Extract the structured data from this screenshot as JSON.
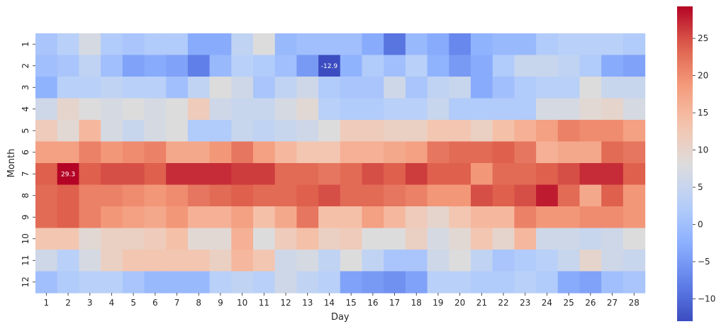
{
  "chart_data": {
    "type": "heatmap",
    "title": "",
    "xlabel": "Day",
    "ylabel": "Month",
    "x_categories": [
      "1",
      "2",
      "3",
      "4",
      "5",
      "6",
      "7",
      "8",
      "9",
      "10",
      "11",
      "12",
      "13",
      "14",
      "15",
      "16",
      "17",
      "18",
      "19",
      "20",
      "21",
      "22",
      "23",
      "24",
      "25",
      "26",
      "27",
      "28"
    ],
    "y_categories": [
      "1",
      "2",
      "3",
      "4",
      "5",
      "6",
      "7",
      "8",
      "9",
      "10",
      "11",
      "12"
    ],
    "colormap": "coolwarm",
    "vmin": -13,
    "vmax": 29.3,
    "colorbar_ticks": [
      -10,
      -5,
      0,
      5,
      10,
      15,
      20,
      25
    ],
    "colorbar_tick_labels": [
      "−10",
      "−5",
      "0",
      "5",
      "10",
      "15",
      "20",
      "25"
    ],
    "annotations": [
      {
        "month": "2",
        "day": "14",
        "label": "-12.9"
      },
      {
        "month": "7",
        "day": "2",
        "label": "29.3"
      }
    ],
    "values": [
      [
        1,
        3,
        7,
        2,
        1,
        2,
        2,
        -3,
        -3,
        4,
        8,
        -1,
        0,
        0,
        0,
        -3,
        -9,
        -1,
        -3,
        -7,
        -2,
        -1,
        -1,
        2,
        3,
        3,
        3,
        2
      ],
      [
        0,
        1,
        4,
        0,
        -4,
        -3,
        -4,
        -8,
        -1,
        3,
        2,
        0,
        -5,
        -12.9,
        -2,
        2,
        0,
        3,
        -2,
        -5,
        -3,
        2,
        5,
        5,
        4,
        2,
        -3,
        -4
      ],
      [
        -2,
        3,
        3,
        4,
        3,
        3,
        0,
        4,
        8,
        6,
        1,
        4,
        6,
        2,
        1,
        1,
        6,
        1,
        4,
        5,
        -3,
        0,
        2,
        3,
        3,
        8,
        5,
        5
      ],
      [
        6,
        10,
        8,
        7,
        8,
        7,
        8,
        12,
        6,
        5,
        5,
        7,
        9,
        3,
        2,
        2,
        3,
        3,
        5,
        2,
        2,
        2,
        2,
        7,
        7,
        9,
        10,
        7
      ],
      [
        12,
        9,
        15,
        7,
        5,
        7,
        8,
        2,
        2,
        5,
        4,
        5,
        6,
        8,
        12,
        12,
        11,
        11,
        13,
        13,
        11,
        14,
        16,
        18,
        21,
        20,
        20,
        18
      ],
      [
        18,
        18,
        21,
        19,
        20,
        21,
        17,
        17,
        19,
        22,
        18,
        15,
        13,
        13,
        16,
        16,
        17,
        18,
        22,
        23,
        23,
        24,
        22,
        16,
        17,
        17,
        23,
        22
      ],
      [
        24,
        29.3,
        24,
        25,
        25,
        24,
        27,
        27,
        27,
        26,
        26,
        23,
        23,
        22,
        23,
        25,
        24,
        26,
        24,
        24,
        19,
        23,
        23,
        24,
        25,
        27,
        27,
        24
      ],
      [
        23,
        24,
        21,
        21,
        20,
        19,
        20,
        22,
        23,
        24,
        23,
        23,
        24,
        25,
        23,
        23,
        22,
        21,
        19,
        19,
        25,
        24,
        25,
        28,
        23,
        17,
        24,
        19
      ],
      [
        23,
        24,
        21,
        19,
        18,
        17,
        19,
        16,
        16,
        18,
        14,
        17,
        22,
        14,
        14,
        18,
        15,
        12,
        10,
        13,
        15,
        15,
        21,
        19,
        19,
        20,
        20,
        19
      ],
      [
        13,
        13,
        9,
        11,
        11,
        12,
        14,
        9,
        9,
        16,
        8,
        12,
        14,
        11,
        12,
        8,
        8,
        11,
        7,
        9,
        13,
        10,
        15,
        6,
        6,
        5,
        6,
        8
      ],
      [
        6,
        3,
        7,
        11,
        13,
        13,
        13,
        13,
        11,
        15,
        13,
        6,
        7,
        4,
        8,
        4,
        1,
        1,
        6,
        8,
        4,
        1,
        2,
        3,
        5,
        10,
        6,
        5
      ],
      [
        0,
        2,
        3,
        3,
        1,
        -1,
        -1,
        -1,
        3,
        4,
        3,
        6,
        4,
        3,
        -4,
        -5,
        -6,
        -4,
        3,
        3,
        2,
        2,
        3,
        2,
        -3,
        -4,
        0,
        1
      ]
    ]
  }
}
